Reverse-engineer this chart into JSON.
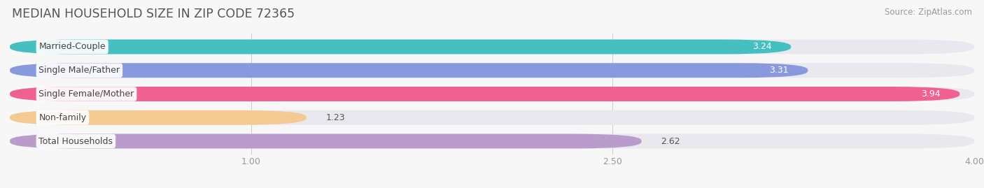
{
  "title": "MEDIAN HOUSEHOLD SIZE IN ZIP CODE 72365",
  "source": "Source: ZipAtlas.com",
  "categories": [
    "Married-Couple",
    "Single Male/Father",
    "Single Female/Mother",
    "Non-family",
    "Total Households"
  ],
  "values": [
    3.24,
    3.31,
    3.94,
    1.23,
    2.62
  ],
  "bar_colors": [
    "#45BFBF",
    "#8899DD",
    "#F06090",
    "#F5C992",
    "#B99CCC"
  ],
  "xlim_max": 4.0,
  "xticks": [
    1.0,
    2.5,
    4.0
  ],
  "bar_height": 0.62,
  "track_color": "#e8e8ee",
  "background_color": "#f7f7f7",
  "title_fontsize": 12.5,
  "source_fontsize": 8.5,
  "tick_fontsize": 9,
  "bar_label_fontsize": 9,
  "category_fontsize": 9,
  "label_dark_color": "#555555",
  "label_white_color": "#ffffff",
  "category_text_color": "#444444"
}
